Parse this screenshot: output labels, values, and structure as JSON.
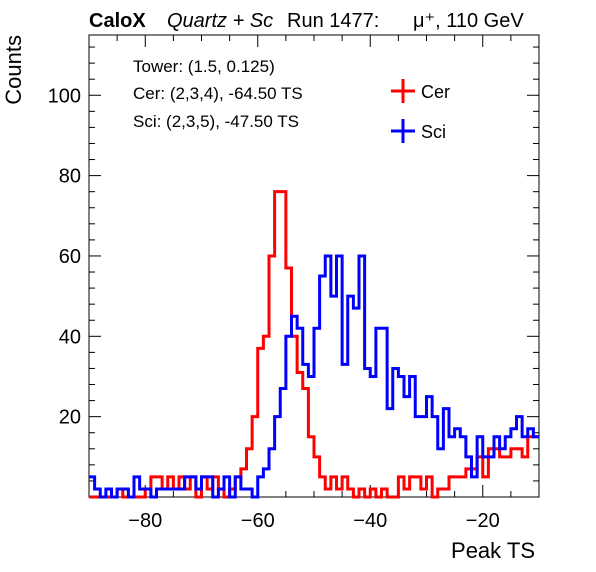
{
  "header": {
    "brand": "CaloX",
    "subtitle": "Quartz + Sc",
    "run": "Run 1477:",
    "beam": "μ⁺, 110 GeV"
  },
  "info_box": {
    "tower": "Tower: (1.5, 0.125)",
    "cer": "Cer: (2,3,4), -64.50 TS",
    "sci": "Sci: (2,3,5), -47.50 TS"
  },
  "chart_data": {
    "type": "step",
    "xlabel": "Peak TS",
    "ylabel": "Counts",
    "xlim": [
      -90,
      -10
    ],
    "ylim": [
      0,
      115
    ],
    "x_ticks": [
      -80,
      -60,
      -40,
      -20
    ],
    "y_ticks": [
      20,
      40,
      60,
      80,
      100
    ],
    "grid": false,
    "legend_position": "top-right",
    "bin_width": 1,
    "bin_start": -90,
    "series": [
      {
        "name": "Cer",
        "color": "#ff0000",
        "values": [
          0,
          0,
          0,
          0,
          0,
          2,
          0,
          0,
          0,
          0,
          2,
          5,
          5,
          2,
          5,
          2,
          5,
          2,
          5,
          0,
          5,
          2,
          5,
          2,
          0,
          2,
          5,
          7,
          12,
          20,
          37,
          40,
          60,
          76,
          76,
          57,
          40,
          31,
          27,
          15,
          10,
          5,
          2,
          5,
          2,
          5,
          2,
          0,
          2,
          0,
          2,
          0,
          2,
          0,
          0,
          5,
          2,
          5,
          5,
          2,
          5,
          0,
          2,
          2,
          5,
          5,
          5,
          7,
          7,
          10,
          5,
          12,
          12,
          10,
          10,
          12,
          12,
          10,
          15,
          15
        ]
      },
      {
        "name": "Sci",
        "color": "#0000ff",
        "values": [
          5,
          2,
          0,
          2,
          0,
          2,
          2,
          0,
          5,
          2,
          2,
          0,
          2,
          2,
          2,
          2,
          2,
          5,
          5,
          2,
          5,
          5,
          0,
          2,
          5,
          0,
          5,
          2,
          2,
          0,
          5,
          7,
          12,
          20,
          27,
          40,
          45,
          42,
          33,
          30,
          42,
          55,
          60,
          50,
          60,
          33,
          50,
          47,
          60,
          32,
          30,
          42,
          42,
          22,
          32,
          30,
          25,
          30,
          20,
          20,
          25,
          20,
          12,
          22,
          15,
          17,
          15,
          10,
          5,
          15,
          10,
          10,
          15,
          12,
          15,
          17,
          20,
          15,
          17,
          15
        ]
      }
    ]
  }
}
